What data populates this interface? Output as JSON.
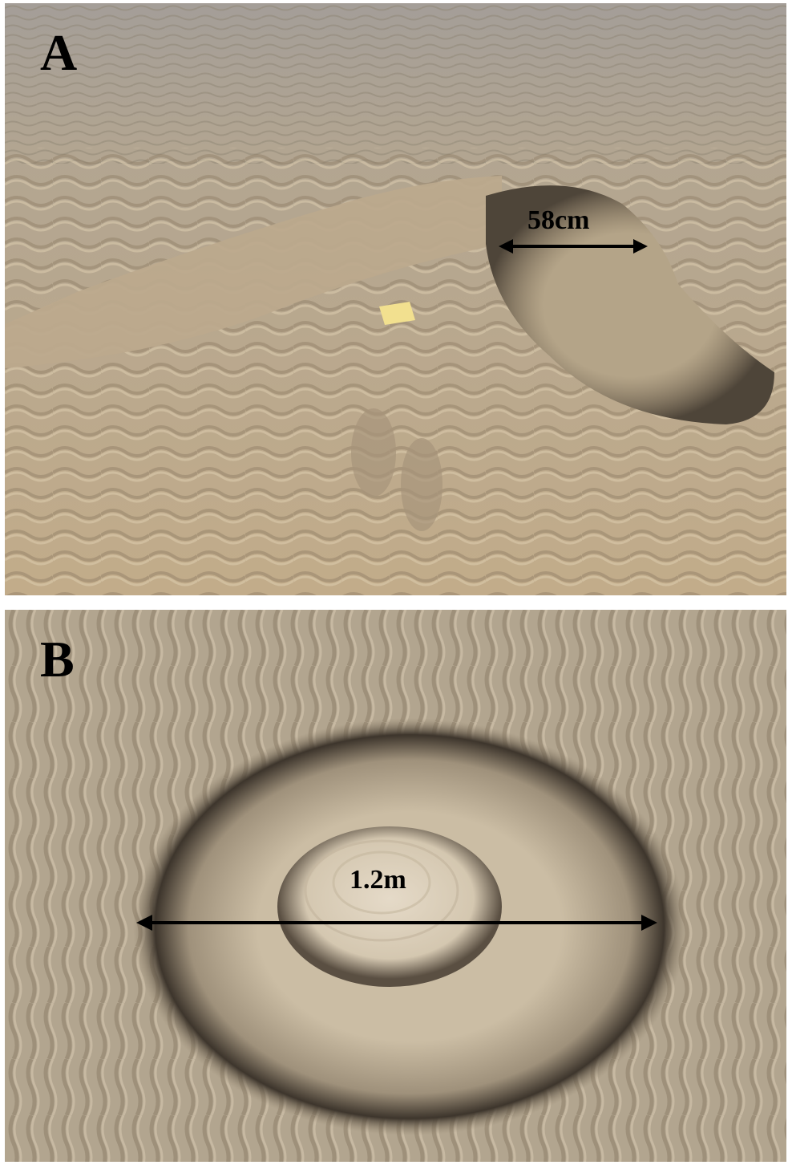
{
  "panels": [
    {
      "letter": "A",
      "measurement": "58cm"
    },
    {
      "letter": "B",
      "measurement": "1.2m"
    }
  ],
  "colors": {
    "sand": "#b9a68a",
    "wet_sand": "#a89a86",
    "dark_mud": "#4a4035",
    "arrow": "#000000"
  }
}
